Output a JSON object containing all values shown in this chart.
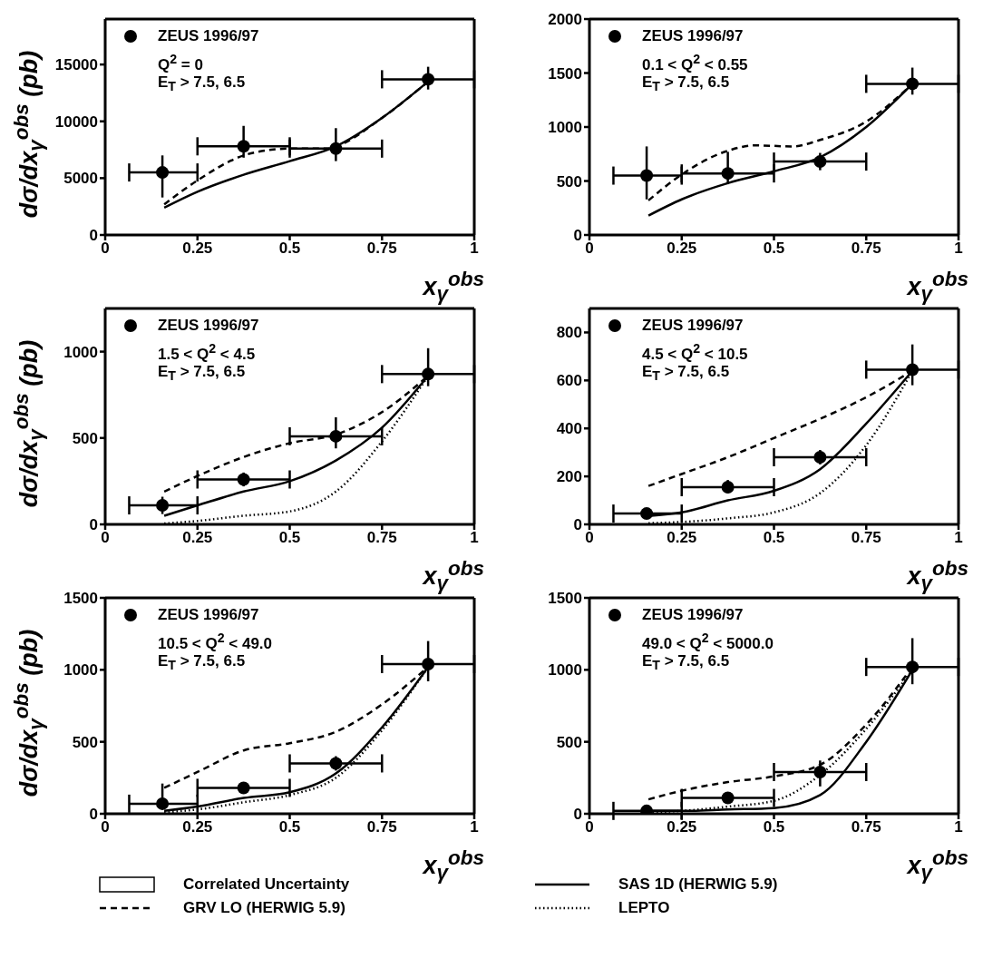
{
  "chart_data": [
    {
      "type": "scatter",
      "xlabel": "x$_{γ}$$^{obs}$",
      "ylabel": "dσ/dx$_{γ}$$^{obs}$ (pb)",
      "annotations": [
        "Q$^{2}$ = 0",
        "E$_{T}$ > 7.5, 6.5"
      ],
      "legend": "top left",
      "xlim": [
        0,
        1
      ],
      "xticks": [
        0,
        0.25,
        0.5,
        0.75,
        1
      ],
      "ylim": [
        0,
        19000
      ],
      "yticks": [
        0,
        5000,
        10000,
        15000
      ],
      "series": [
        {
          "name": "ZEUS 1996/97",
          "type": "scatter",
          "marker": "circle",
          "color": "#000000",
          "x": [
            0.155,
            0.375,
            0.625,
            0.875
          ],
          "values": [
            5500,
            7800,
            7600,
            13700
          ],
          "errors": [
            [
              3300,
              7000
            ],
            [
              6800,
              9600
            ],
            [
              6500,
              9400
            ],
            [
              12800,
              14800
            ]
          ],
          "xerrors": [
            [
              0.065,
              0.25
            ],
            [
              0.25,
              0.5
            ],
            [
              0.5,
              0.75
            ],
            [
              0.75,
              1
            ]
          ]
        },
        {
          "type": "line",
          "line_style": "dashed",
          "color": "#000000",
          "x": [
            0.16,
            0.25,
            0.375,
            0.45,
            0.5,
            0.6,
            0.625,
            0.75,
            0.875
          ],
          "values": [
            2700,
            4800,
            7000,
            7500,
            7600,
            7600,
            7800,
            10300,
            13500
          ]
        },
        {
          "type": "line",
          "line_style": "solid",
          "color": "#000000",
          "x": [
            0.16,
            0.25,
            0.375,
            0.5,
            0.625,
            0.75,
            0.875
          ],
          "values": [
            2400,
            3800,
            5300,
            6500,
            7800,
            10300,
            13500
          ]
        }
      ]
    },
    {
      "type": "scatter",
      "xlabel": "x$_{γ}$$^{obs}$",
      "annotations": [
        "0.1 < Q$^{2}$ < 0.55",
        "E$_{T}$ > 7.5, 6.5"
      ],
      "legend": "top left",
      "xlim": [
        0,
        1
      ],
      "xticks": [
        0,
        0.25,
        0.5,
        0.75,
        1
      ],
      "ylim": [
        0,
        2000
      ],
      "yticks": [
        0,
        500,
        1000,
        1500,
        2000
      ],
      "series": [
        {
          "name": "ZEUS 1996/97",
          "type": "scatter",
          "marker": "circle",
          "color": "#000000",
          "x": [
            0.155,
            0.375,
            0.625,
            0.875
          ],
          "values": [
            550,
            570,
            680,
            1400
          ],
          "errors": [
            [
              330,
              820
            ],
            [
              470,
              770
            ],
            [
              600,
              760
            ],
            [
              1300,
              1550
            ]
          ],
          "xerrors": [
            [
              0.065,
              0.25
            ],
            [
              0.25,
              0.5
            ],
            [
              0.5,
              0.75
            ],
            [
              0.75,
              1
            ]
          ]
        },
        {
          "type": "line",
          "line_style": "dashed",
          "color": "#000000",
          "x": [
            0.16,
            0.25,
            0.375,
            0.45,
            0.55,
            0.625,
            0.75,
            0.875
          ],
          "values": [
            320,
            560,
            780,
            830,
            820,
            880,
            1050,
            1400
          ]
        },
        {
          "type": "line",
          "line_style": "solid",
          "color": "#000000",
          "x": [
            0.16,
            0.25,
            0.375,
            0.5,
            0.625,
            0.75,
            0.875
          ],
          "values": [
            180,
            330,
            480,
            590,
            720,
            1000,
            1400
          ]
        }
      ]
    },
    {
      "type": "scatter",
      "xlabel": "x$_{γ}$$^{obs}$",
      "ylabel": "dσ/dx$_{γ}$$^{obs}$ (pb)",
      "annotations": [
        "1.5 < Q$^{2}$ < 4.5",
        "E$_{T}$ > 7.5, 6.5"
      ],
      "legend": "top left",
      "xlim": [
        0,
        1
      ],
      "xticks": [
        0,
        0.25,
        0.5,
        0.75,
        1
      ],
      "ylim": [
        0,
        1250
      ],
      "yticks": [
        0,
        500,
        1000
      ],
      "series": [
        {
          "name": "ZEUS 1996/97",
          "type": "scatter",
          "marker": "circle",
          "color": "#000000",
          "x": [
            0.155,
            0.375,
            0.625,
            0.875
          ],
          "values": [
            110,
            260,
            510,
            870
          ],
          "errors": [
            [
              60,
              160
            ],
            [
              220,
              300
            ],
            [
              440,
              620
            ],
            [
              800,
              1020
            ]
          ],
          "xerrors": [
            [
              0.065,
              0.25
            ],
            [
              0.25,
              0.5
            ],
            [
              0.5,
              0.75
            ],
            [
              0.75,
              1
            ]
          ]
        },
        {
          "type": "line",
          "line_style": "dashed",
          "color": "#000000",
          "x": [
            0.16,
            0.25,
            0.375,
            0.5,
            0.625,
            0.75,
            0.875
          ],
          "values": [
            190,
            280,
            390,
            470,
            520,
            650,
            860
          ]
        },
        {
          "type": "line",
          "line_style": "solid",
          "color": "#000000",
          "x": [
            0.16,
            0.25,
            0.375,
            0.5,
            0.625,
            0.75,
            0.875
          ],
          "values": [
            50,
            110,
            190,
            250,
            370,
            560,
            860
          ]
        },
        {
          "type": "line",
          "line_style": "dotted",
          "color": "#000000",
          "x": [
            0.16,
            0.25,
            0.375,
            0.5,
            0.625,
            0.75,
            0.875
          ],
          "values": [
            5,
            20,
            50,
            75,
            190,
            480,
            860
          ]
        }
      ]
    },
    {
      "type": "scatter",
      "xlabel": "x$_{γ}$$^{obs}$",
      "annotations": [
        "4.5 < Q$^{2}$ < 10.5",
        "E$_{T}$ > 7.5, 6.5"
      ],
      "legend": "top left",
      "xlim": [
        0,
        1
      ],
      "xticks": [
        0,
        0.25,
        0.5,
        0.75,
        1
      ],
      "ylim": [
        0,
        900
      ],
      "yticks": [
        0,
        200,
        400,
        600,
        800
      ],
      "series": [
        {
          "name": "ZEUS 1996/97",
          "type": "scatter",
          "marker": "circle",
          "color": "#000000",
          "x": [
            0.155,
            0.375,
            0.625,
            0.875
          ],
          "values": [
            45,
            155,
            280,
            645
          ],
          "errors": [
            [
              30,
              60
            ],
            [
              130,
              185
            ],
            [
              250,
              310
            ],
            [
              580,
              750
            ]
          ],
          "xerrors": [
            [
              0.065,
              0.25
            ],
            [
              0.25,
              0.5
            ],
            [
              0.5,
              0.75
            ],
            [
              0.75,
              1
            ]
          ]
        },
        {
          "type": "line",
          "line_style": "dashed",
          "color": "#000000",
          "x": [
            0.16,
            0.25,
            0.375,
            0.5,
            0.625,
            0.75,
            0.875
          ],
          "values": [
            160,
            210,
            280,
            360,
            440,
            530,
            640
          ]
        },
        {
          "type": "line",
          "line_style": "solid",
          "color": "#000000",
          "x": [
            0.16,
            0.25,
            0.375,
            0.5,
            0.625,
            0.75,
            0.875
          ],
          "values": [
            35,
            50,
            100,
            140,
            230,
            420,
            640
          ]
        },
        {
          "type": "line",
          "line_style": "dotted",
          "color": "#000000",
          "x": [
            0.16,
            0.25,
            0.375,
            0.5,
            0.625,
            0.75,
            0.875
          ],
          "values": [
            5,
            10,
            25,
            50,
            130,
            330,
            640
          ]
        }
      ]
    },
    {
      "type": "scatter",
      "xlabel": "x$_{γ}$$^{obs}$",
      "ylabel": "dσ/dx$_{γ}$$^{obs}$ (pb)",
      "annotations": [
        "10.5 < Q$^{2}$ < 49.0",
        "E$_{T}$ > 7.5, 6.5"
      ],
      "legend": "top left",
      "xlim": [
        0,
        1
      ],
      "xticks": [
        0,
        0.25,
        0.5,
        0.75,
        1
      ],
      "ylim": [
        0,
        1500
      ],
      "yticks": [
        0,
        500,
        1000,
        1500
      ],
      "series": [
        {
          "name": "ZEUS 1996/97",
          "type": "scatter",
          "marker": "circle",
          "color": "#000000",
          "x": [
            0.155,
            0.375,
            0.625,
            0.875
          ],
          "values": [
            70,
            180,
            350,
            1040
          ],
          "errors": [
            [
              40,
              210
            ],
            [
              150,
              210
            ],
            [
              300,
              400
            ],
            [
              920,
              1200
            ]
          ],
          "xerrors": [
            [
              0.065,
              0.25
            ],
            [
              0.25,
              0.5
            ],
            [
              0.5,
              0.75
            ],
            [
              0.75,
              1
            ]
          ]
        },
        {
          "type": "line",
          "line_style": "dashed",
          "color": "#000000",
          "x": [
            0.16,
            0.25,
            0.375,
            0.5,
            0.625,
            0.75,
            0.875
          ],
          "values": [
            180,
            290,
            440,
            490,
            570,
            760,
            1020
          ]
        },
        {
          "type": "line",
          "line_style": "solid",
          "color": "#000000",
          "x": [
            0.16,
            0.25,
            0.375,
            0.5,
            0.625,
            0.75,
            0.875
          ],
          "values": [
            20,
            50,
            110,
            150,
            280,
            600,
            1020
          ]
        },
        {
          "type": "line",
          "line_style": "dotted",
          "color": "#000000",
          "x": [
            0.16,
            0.25,
            0.375,
            0.5,
            0.625,
            0.75,
            0.875
          ],
          "values": [
            10,
            30,
            80,
            130,
            250,
            580,
            1020
          ]
        }
      ]
    },
    {
      "type": "scatter",
      "xlabel": "x$_{γ}$$^{obs}$",
      "annotations": [
        "49.0 < Q$^{2}$ < 5000.0",
        "E$_{T}$ > 7.5, 6.5",
        "Correlated Uncertainty"
      ],
      "legend": "bottom",
      "xlim": [
        0,
        1
      ],
      "xticks": [
        0,
        0.25,
        0.5,
        0.75,
        1
      ],
      "ylim": [
        0,
        1500
      ],
      "yticks": [
        0,
        500,
        1000,
        1500
      ],
      "series": [
        {
          "name": "ZEUS 1996/97",
          "type": "scatter",
          "marker": "circle",
          "color": "#000000",
          "x": [
            0.155,
            0.375,
            0.625,
            0.875
          ],
          "values": [
            20,
            110,
            290,
            1020
          ],
          "errors": [
            [
              5,
              40
            ],
            [
              80,
              150
            ],
            [
              190,
              370
            ],
            [
              900,
              1220
            ]
          ],
          "xerrors": [
            [
              0.065,
              0.25
            ],
            [
              0.25,
              0.5
            ],
            [
              0.5,
              0.75
            ],
            [
              0.75,
              1
            ]
          ]
        },
        {
          "name": "GRV LO (HERWIG 5.9)",
          "type": "line",
          "line_style": "dashed",
          "color": "#000000",
          "x": [
            0.16,
            0.25,
            0.375,
            0.5,
            0.625,
            0.75,
            0.875
          ],
          "values": [
            100,
            160,
            220,
            260,
            340,
            620,
            1020
          ]
        },
        {
          "name": "SAS 1D (HERWIG 5.9)",
          "type": "line",
          "line_style": "solid",
          "color": "#000000",
          "x": [
            0.16,
            0.25,
            0.375,
            0.5,
            0.625,
            0.75,
            0.875
          ],
          "values": [
            20,
            20,
            30,
            40,
            130,
            500,
            1000
          ]
        },
        {
          "name": "LEPTO",
          "type": "line",
          "line_style": "dotted",
          "color": "#000000",
          "x": [
            0.16,
            0.25,
            0.375,
            0.5,
            0.625,
            0.75,
            0.875
          ],
          "values": [
            10,
            20,
            50,
            90,
            270,
            590,
            1000
          ]
        }
      ]
    }
  ]
}
